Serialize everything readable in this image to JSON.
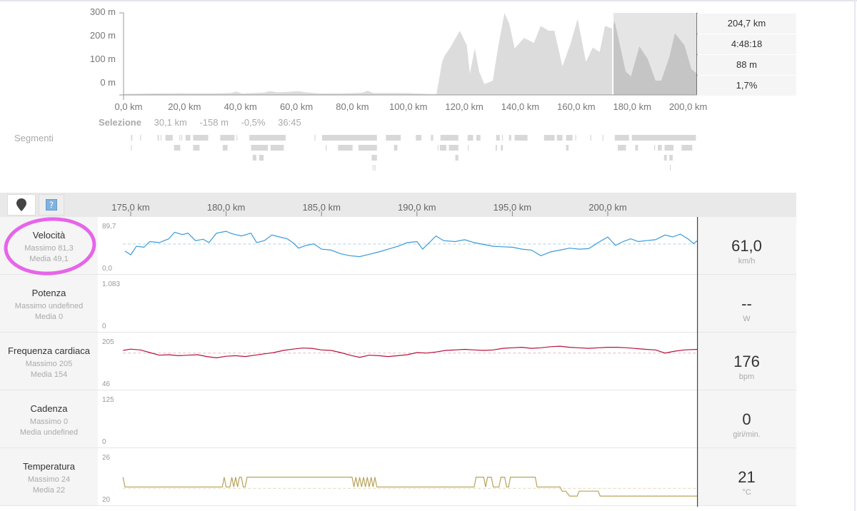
{
  "elevation": {
    "y_ticks": [
      "300 m",
      "200 m",
      "100 m",
      "0 m"
    ],
    "x_ticks": [
      "0,0 km",
      "20,0 km",
      "40,0 km",
      "60,0 km",
      "80,0 km",
      "100,0 km",
      "120,0 km",
      "140,0 km",
      "160,0 km",
      "180,0 km",
      "200,0 km"
    ],
    "ylim": [
      -50,
      300
    ],
    "xlim": [
      0,
      204.7
    ],
    "selection_km": [
      174.6,
      204.7
    ],
    "profile": [
      [
        0,
        -46
      ],
      [
        10,
        -44
      ],
      [
        20,
        -43
      ],
      [
        30,
        -44
      ],
      [
        38,
        -42
      ],
      [
        40,
        -36
      ],
      [
        42,
        -44
      ],
      [
        50,
        -40
      ],
      [
        52,
        -34
      ],
      [
        55,
        -39
      ],
      [
        60,
        -36
      ],
      [
        62,
        -34
      ],
      [
        65,
        -39
      ],
      [
        70,
        -44
      ],
      [
        80,
        -43
      ],
      [
        85,
        -41
      ],
      [
        87,
        -32
      ],
      [
        89,
        -42
      ],
      [
        100,
        -42
      ],
      [
        110,
        -46
      ],
      [
        111.6,
        -46
      ],
      [
        113.6,
        91
      ],
      [
        114.5,
        117
      ],
      [
        116.5,
        152
      ],
      [
        119.9,
        223
      ],
      [
        122.4,
        162
      ],
      [
        123.5,
        41
      ],
      [
        125.3,
        148
      ],
      [
        126.8,
        50
      ],
      [
        128.7,
        -4
      ],
      [
        131.7,
        11
      ],
      [
        133.6,
        152
      ],
      [
        135.9,
        299
      ],
      [
        137.6,
        254
      ],
      [
        139.5,
        148
      ],
      [
        142.9,
        193
      ],
      [
        146.4,
        172
      ],
      [
        148.8,
        244
      ],
      [
        151.7,
        224
      ],
      [
        153.7,
        224
      ],
      [
        156.6,
        72
      ],
      [
        159.6,
        172
      ],
      [
        162,
        274
      ],
      [
        165,
        91
      ],
      [
        167.4,
        152
      ],
      [
        169.9,
        133
      ],
      [
        171.8,
        244
      ],
      [
        174.3,
        233
      ],
      [
        175.3,
        263
      ],
      [
        179.2,
        50
      ],
      [
        181.1,
        29
      ],
      [
        184.1,
        157
      ],
      [
        187,
        105
      ],
      [
        189.9,
        11
      ],
      [
        191.9,
        11
      ],
      [
        194.8,
        111
      ],
      [
        196.8,
        213
      ],
      [
        200.2,
        162
      ],
      [
        202.7,
        60
      ],
      [
        204.7,
        41
      ]
    ],
    "stats": [
      "204,7 km",
      "4:48:18",
      "88 m",
      "1,7%"
    ]
  },
  "selection": {
    "label": "Selezione",
    "distance": "30,1 km",
    "elevation": "-158 m",
    "grade": "-0,5%",
    "time": "36:45"
  },
  "segments": {
    "label": "Segmenti",
    "rows": [
      [
        [
          2.4,
          2.9
        ],
        [
          5.7,
          5.9
        ],
        [
          11.9,
          12.4
        ],
        [
          13,
          13.2
        ],
        [
          14.7,
          17.3
        ],
        [
          19.7,
          19.9
        ],
        [
          20.4,
          20.6
        ],
        [
          21.9,
          23.6
        ],
        [
          24.6,
          30
        ],
        [
          34.3,
          39.4
        ],
        [
          40.1,
          40.3
        ],
        [
          44.7,
          57.7
        ],
        [
          68,
          68.2
        ],
        [
          70.7,
          90.3
        ],
        [
          93.5,
          98.8
        ],
        [
          104.2,
          106.2
        ],
        [
          109.6,
          110.4
        ],
        [
          113,
          119.4
        ],
        [
          122.7,
          124.7
        ],
        [
          125.8,
          127.3
        ],
        [
          132.9,
          134.2
        ],
        [
          135,
          135.3
        ],
        [
          137.5,
          138.3
        ],
        [
          139.5,
          144.1
        ],
        [
          150,
          153.8
        ],
        [
          154.6,
          156.6
        ],
        [
          157.9,
          160.2
        ],
        [
          161.2,
          161.4
        ],
        [
          166.6,
          166.8
        ],
        [
          170.9,
          171.1
        ],
        [
          175.3,
          180.4
        ],
        [
          181.4,
          204.3
        ]
      ],
      [
        [
          2.4,
          2.6
        ],
        [
          17.8,
          20
        ],
        [
          24.6,
          26.9
        ],
        [
          35.2,
          36.9
        ],
        [
          45.3,
          51.3
        ],
        [
          52.3,
          57
        ],
        [
          72,
          72.3
        ],
        [
          76.4,
          81.6
        ],
        [
          83.7,
          90.3
        ],
        [
          96.4,
          97.6
        ],
        [
          112,
          112.2
        ],
        [
          112.8,
          115.1
        ],
        [
          116,
          119.4
        ],
        [
          122.8,
          123
        ],
        [
          132.7,
          133.2
        ],
        [
          134.6,
          135.3
        ],
        [
          157.9,
          158.8
        ],
        [
          176.4,
          179.3
        ],
        [
          182.6,
          183.6
        ],
        [
          189.4,
          189.6
        ],
        [
          190.7,
          192.1
        ],
        [
          193.1,
          196.3
        ],
        [
          199.2,
          203
        ]
      ],
      [
        [
          45.9,
          47.2
        ],
        [
          48.2,
          49.8
        ],
        [
          88.4,
          90.3
        ],
        [
          118.3,
          119.4
        ],
        [
          192.9,
          193.9
        ],
        [
          194.8,
          196
        ]
      ],
      [
        [
          88.8,
          89.1
        ],
        [
          89.5,
          89.8
        ],
        [
          195,
          195.2
        ]
      ]
    ]
  },
  "toolbar": {
    "buttons": [
      "map-pin",
      "help"
    ]
  },
  "detail": {
    "xlim": [
      174.6,
      204.7
    ],
    "x_ticks": [
      {
        "km": 175,
        "label": "175,0 km"
      },
      {
        "km": 180,
        "label": "180,0 km"
      },
      {
        "km": 185,
        "label": "185,0 km"
      },
      {
        "km": 190,
        "label": "190,0 km"
      },
      {
        "km": 195,
        "label": "195,0 km"
      },
      {
        "km": 200,
        "label": "200,0 km"
      }
    ],
    "cursor_km": 204.7,
    "rows": [
      {
        "title": "Velocità",
        "max": "Massimo 81,3",
        "avg": "Media 49,1",
        "ymax": "89,7",
        "ymin": "0,0",
        "range": [
          0,
          89.7
        ],
        "mean": 55,
        "color": "#3a9ad9",
        "mean_color": "#a9d3f0",
        "value": "61,0",
        "unit": "km/h",
        "series": [
          [
            174.7,
            40
          ],
          [
            175,
            32
          ],
          [
            175.3,
            50
          ],
          [
            175.7,
            48
          ],
          [
            176,
            60
          ],
          [
            176.5,
            58
          ],
          [
            177,
            66
          ],
          [
            177.3,
            80
          ],
          [
            177.7,
            75
          ],
          [
            178,
            78
          ],
          [
            178.4,
            62
          ],
          [
            178.8,
            65
          ],
          [
            179.1,
            58
          ],
          [
            179.5,
            78
          ],
          [
            180,
            82
          ],
          [
            180.3,
            77
          ],
          [
            180.8,
            72
          ],
          [
            181.3,
            78
          ],
          [
            181.6,
            58
          ],
          [
            182,
            62
          ],
          [
            182.4,
            74
          ],
          [
            182.8,
            70
          ],
          [
            183.2,
            66
          ],
          [
            183.5,
            58
          ],
          [
            183.8,
            46
          ],
          [
            184.2,
            52
          ],
          [
            184.6,
            55
          ],
          [
            185,
            44
          ],
          [
            185.5,
            42
          ],
          [
            186,
            34
          ],
          [
            186.5,
            30
          ],
          [
            187,
            28
          ],
          [
            187.5,
            33
          ],
          [
            188,
            38
          ],
          [
            188.5,
            44
          ],
          [
            189,
            50
          ],
          [
            189.5,
            58
          ],
          [
            190,
            60
          ],
          [
            190.3,
            44
          ],
          [
            190.6,
            56
          ],
          [
            191,
            72
          ],
          [
            191.4,
            62
          ],
          [
            192,
            60
          ],
          [
            192.5,
            64
          ],
          [
            193,
            58
          ],
          [
            193.5,
            54
          ],
          [
            194,
            50
          ],
          [
            194.5,
            49
          ],
          [
            195,
            48
          ],
          [
            195.5,
            44
          ],
          [
            196,
            42
          ],
          [
            196.5,
            30
          ],
          [
            197,
            38
          ],
          [
            197.5,
            42
          ],
          [
            198,
            46
          ],
          [
            198.5,
            44
          ],
          [
            199,
            45
          ],
          [
            199.5,
            58
          ],
          [
            200,
            70
          ],
          [
            200.4,
            52
          ],
          [
            200.8,
            60
          ],
          [
            201.2,
            66
          ],
          [
            201.6,
            60
          ],
          [
            202,
            62
          ],
          [
            202.5,
            64
          ],
          [
            203,
            74
          ],
          [
            203.4,
            70
          ],
          [
            203.8,
            76
          ],
          [
            204.2,
            66
          ],
          [
            204.5,
            56
          ],
          [
            204.7,
            62
          ]
        ]
      },
      {
        "title": "Potenza",
        "max": "Massimo undefined",
        "avg": "Media 0",
        "ymax": "1.083",
        "ymin": "0",
        "range": [
          0,
          1083
        ],
        "value": "--",
        "unit": "W",
        "series": []
      },
      {
        "title": "Frequenza cardiaca",
        "max": "Massimo 205",
        "avg": "Media 154",
        "ymax": "205",
        "ymin": "46",
        "range": [
          46,
          205
        ],
        "mean": 168,
        "color": "#b5123c",
        "mean_color": "#e9b6c4",
        "value": "176",
        "unit": "bpm",
        "series": [
          [
            174.6,
            178
          ],
          [
            175,
            183
          ],
          [
            175.5,
            180
          ],
          [
            176,
            170
          ],
          [
            176.5,
            160
          ],
          [
            177,
            162
          ],
          [
            177.5,
            158
          ],
          [
            178,
            160
          ],
          [
            178.5,
            162
          ],
          [
            179,
            155
          ],
          [
            179.5,
            150
          ],
          [
            180,
            156
          ],
          [
            180.5,
            158
          ],
          [
            181,
            155
          ],
          [
            181.5,
            160
          ],
          [
            182,
            165
          ],
          [
            182.5,
            170
          ],
          [
            183,
            178
          ],
          [
            183.5,
            183
          ],
          [
            184,
            187
          ],
          [
            184.5,
            186
          ],
          [
            185,
            180
          ],
          [
            185.5,
            178
          ],
          [
            186,
            170
          ],
          [
            186.5,
            160
          ],
          [
            187,
            152
          ],
          [
            187.5,
            160
          ],
          [
            188,
            158
          ],
          [
            188.5,
            155
          ],
          [
            189,
            158
          ],
          [
            189.5,
            162
          ],
          [
            190,
            170
          ],
          [
            190.5,
            168
          ],
          [
            191,
            172
          ],
          [
            191.5,
            178
          ],
          [
            192,
            180
          ],
          [
            192.5,
            182
          ],
          [
            193,
            180
          ],
          [
            193.5,
            178
          ],
          [
            194,
            180
          ],
          [
            194.5,
            186
          ],
          [
            195,
            188
          ],
          [
            195.5,
            190
          ],
          [
            196,
            186
          ],
          [
            196.5,
            188
          ],
          [
            197,
            192
          ],
          [
            197.5,
            194
          ],
          [
            198,
            190
          ],
          [
            198.5,
            188
          ],
          [
            199,
            186
          ],
          [
            199.5,
            188
          ],
          [
            200,
            190
          ],
          [
            200.5,
            190
          ],
          [
            201,
            188
          ],
          [
            201.5,
            185
          ],
          [
            202,
            182
          ],
          [
            202.5,
            180
          ],
          [
            203,
            168
          ],
          [
            203.5,
            175
          ],
          [
            204,
            180
          ],
          [
            204.7,
            182
          ]
        ]
      },
      {
        "title": "Cadenza",
        "max": "Massimo 0",
        "avg": "Media undefined",
        "ymax": "125",
        "ymin": "0",
        "range": [
          0,
          125
        ],
        "value": "0",
        "unit": "giri/min.",
        "series": []
      },
      {
        "title": "Temperatura",
        "max": "Massimo 24",
        "avg": "Media 22",
        "ymax": "26",
        "ymin": "20",
        "range": [
          20,
          26
        ],
        "mean": 21.8,
        "color": "#b8a35a",
        "mean_color": "#e2d9b6",
        "value": "21",
        "unit": "°C",
        "series": [
          [
            174.6,
            23.4
          ],
          [
            174.7,
            22
          ],
          [
            179.8,
            22
          ],
          [
            179.9,
            23.4
          ],
          [
            180,
            22
          ],
          [
            180.2,
            22
          ],
          [
            180.3,
            23.4
          ],
          [
            180.4,
            22
          ],
          [
            180.5,
            23.4
          ],
          [
            180.6,
            22
          ],
          [
            180.7,
            23.4
          ],
          [
            180.8,
            23.4
          ],
          [
            180.9,
            22
          ],
          [
            181,
            22
          ],
          [
            181.1,
            23.4
          ],
          [
            186.6,
            23.4
          ],
          [
            186.7,
            22
          ],
          [
            186.8,
            23.4
          ],
          [
            186.9,
            22
          ],
          [
            187,
            23.4
          ],
          [
            187.1,
            22
          ],
          [
            187.2,
            23.4
          ],
          [
            187.3,
            22
          ],
          [
            187.4,
            23.4
          ],
          [
            187.5,
            22
          ],
          [
            187.6,
            23.4
          ],
          [
            187.7,
            22
          ],
          [
            187.8,
            23.4
          ],
          [
            187.9,
            22
          ],
          [
            193,
            22
          ],
          [
            193.1,
            23.4
          ],
          [
            193.5,
            23.4
          ],
          [
            193.6,
            22
          ],
          [
            193.7,
            23.4
          ],
          [
            193.9,
            23.4
          ],
          [
            194,
            22
          ],
          [
            194.3,
            22
          ],
          [
            194.4,
            23.4
          ],
          [
            194.6,
            23.4
          ],
          [
            194.7,
            22
          ],
          [
            194.8,
            22
          ],
          [
            194.9,
            23.4
          ],
          [
            196.2,
            23.4
          ],
          [
            196.3,
            22
          ],
          [
            197.5,
            22
          ],
          [
            197.6,
            21.4
          ],
          [
            197.8,
            21.4
          ],
          [
            198,
            20.7
          ],
          [
            198.4,
            20.7
          ],
          [
            198.5,
            21.4
          ],
          [
            199.5,
            21.4
          ],
          [
            199.6,
            20.7
          ],
          [
            204.7,
            20.7
          ]
        ]
      }
    ]
  }
}
